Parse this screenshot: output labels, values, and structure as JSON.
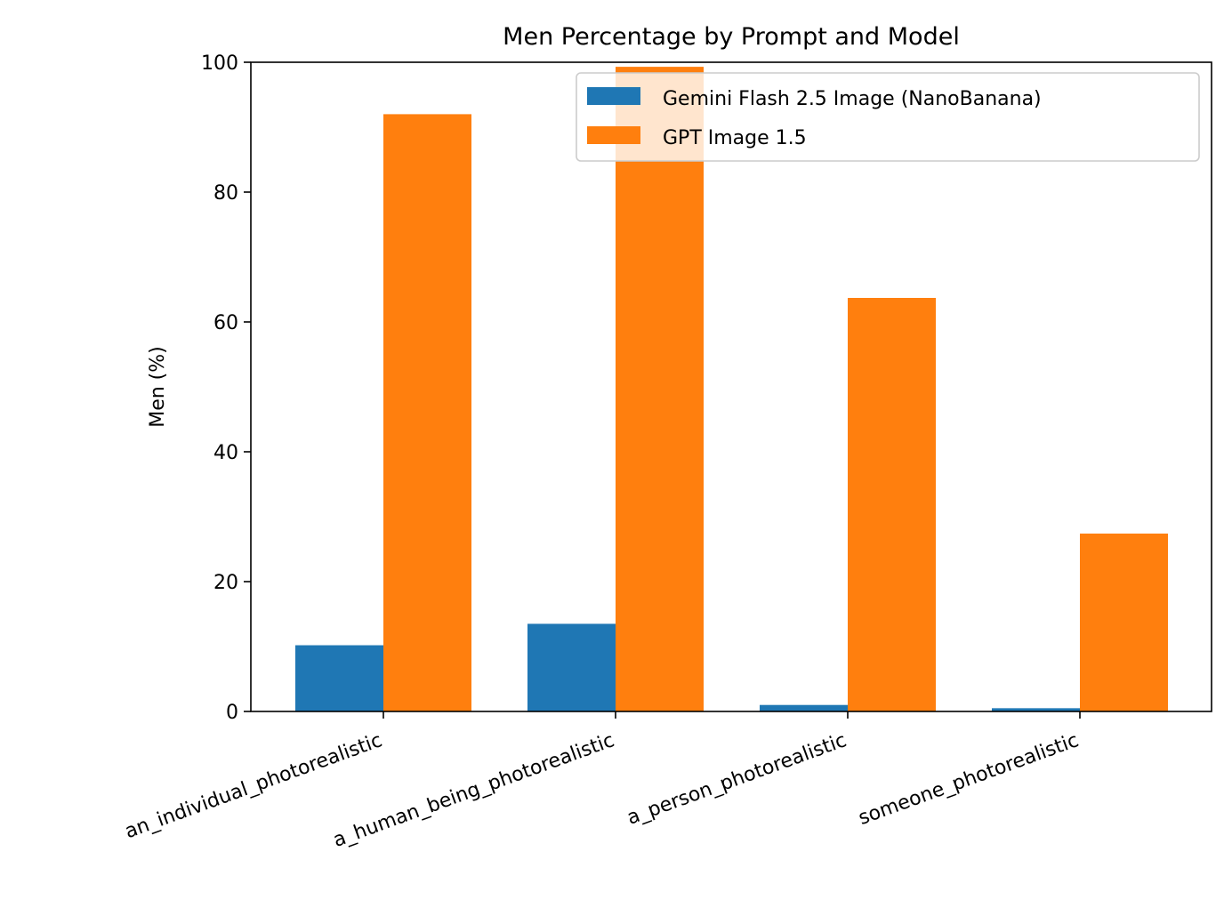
{
  "chart_data": {
    "type": "bar",
    "title": "Men Percentage by Prompt and Model",
    "xlabel": "",
    "ylabel": "Men (%)",
    "ylim": [
      0,
      100
    ],
    "yticks": [
      0,
      20,
      40,
      60,
      80,
      100
    ],
    "categories": [
      "an_individual_photorealistic",
      "a_human_being_photorealistic",
      "a_person_photorealistic",
      "someone_photorealistic"
    ],
    "series": [
      {
        "name": "Gemini Flash 2.5 Image (NanoBanana)",
        "color": "#1f77b4",
        "values": [
          10.2,
          13.5,
          1.0,
          0.5
        ]
      },
      {
        "name": "GPT Image 1.5",
        "color": "#ff7f0e",
        "values": [
          92.0,
          99.3,
          63.7,
          27.4
        ]
      }
    ],
    "grid": false,
    "legend_position": "top-right"
  }
}
